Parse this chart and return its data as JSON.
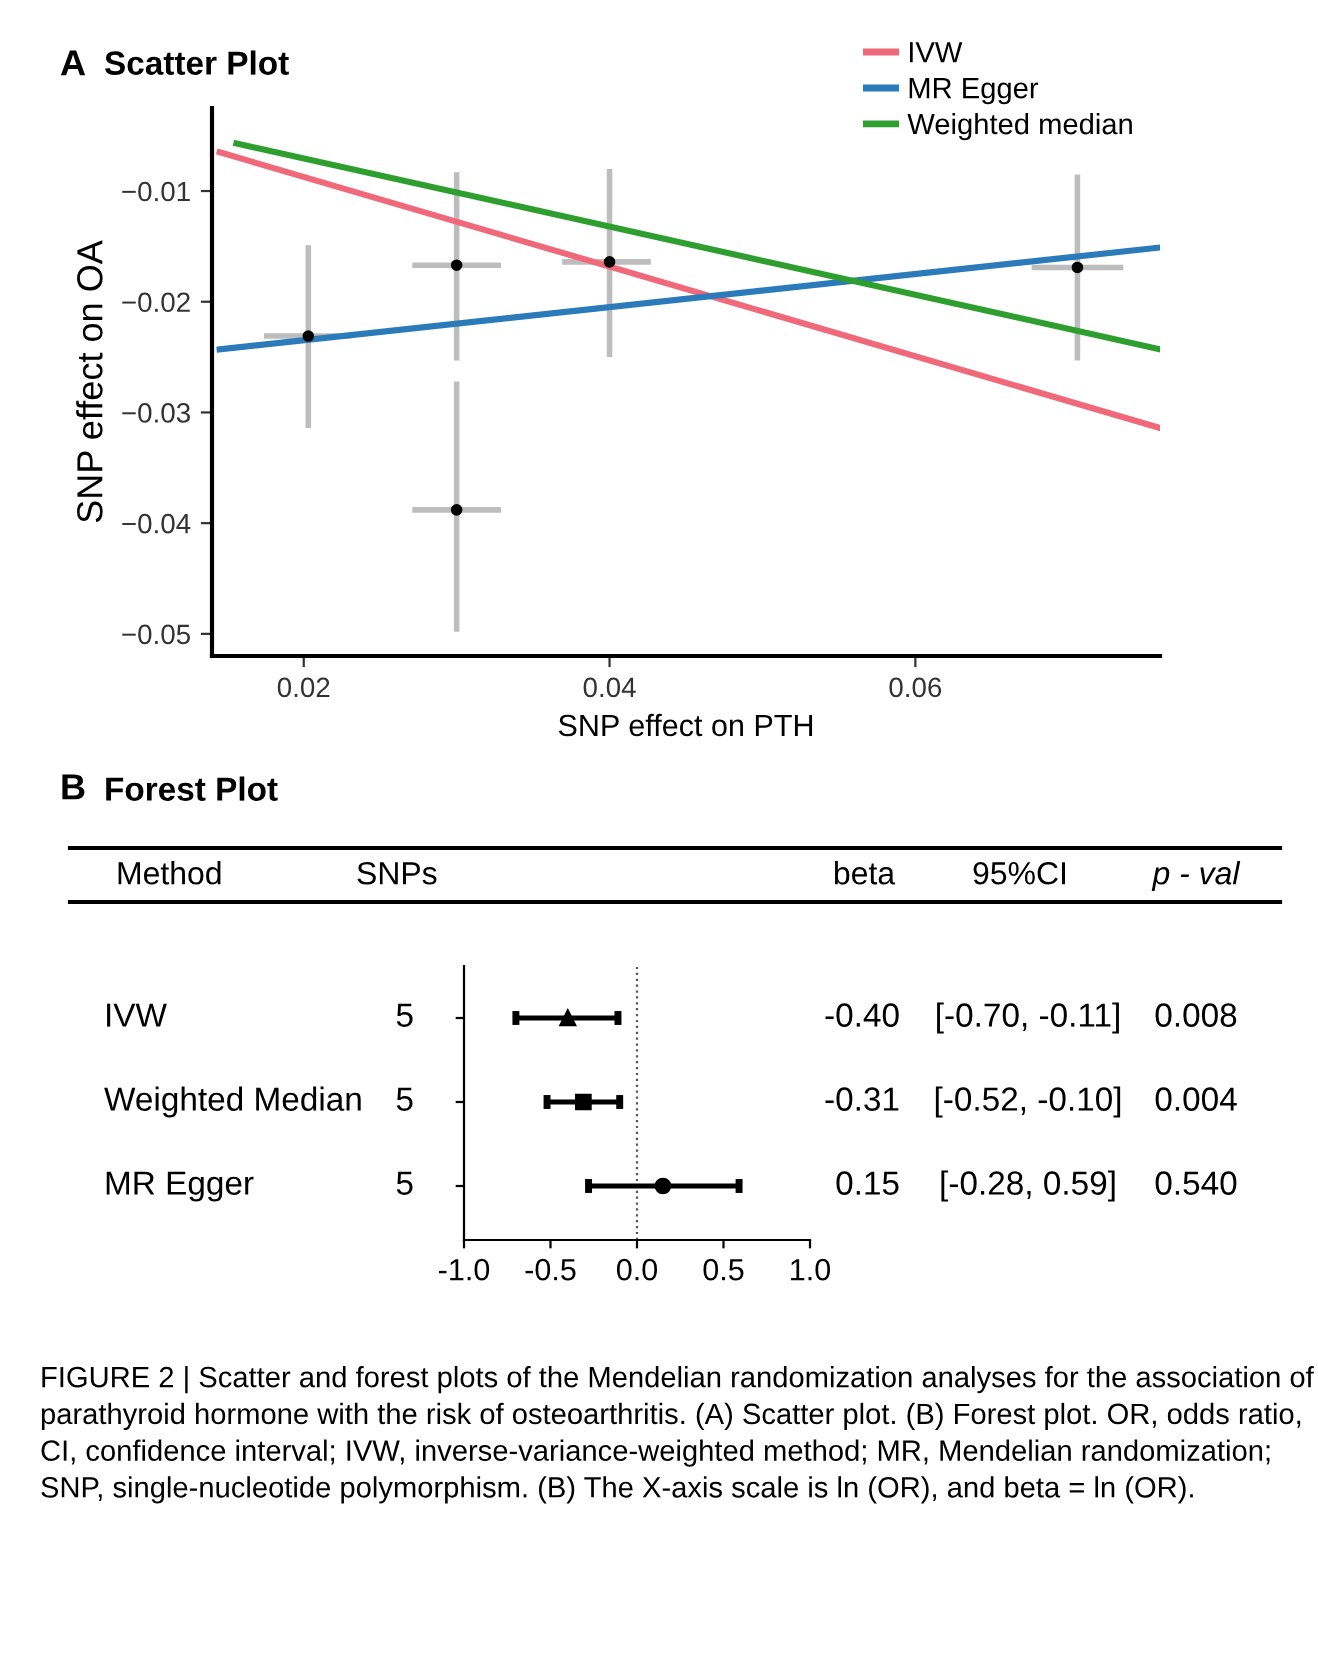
{
  "chart_data": [
    {
      "type": "scatter",
      "title": "Scatter Plot",
      "xlabel": "SNP effect on PTH",
      "ylabel": "SNP effect on OA",
      "annotations": [
        "A"
      ],
      "xlim": [
        0.014,
        0.076
      ],
      "ylim": [
        -0.052,
        -0.0025
      ],
      "xticks": [
        0.02,
        0.04,
        0.06
      ],
      "yticks": [
        {
          "value": -0.01,
          "label": "−0.01"
        },
        {
          "value": -0.02,
          "label": "−0.02"
        },
        {
          "value": -0.03,
          "label": "−0.03"
        },
        {
          "value": -0.04,
          "label": "−0.04"
        },
        {
          "value": -0.05,
          "label": "−0.05"
        }
      ],
      "grid": false,
      "legend": "top right",
      "series": [
        {
          "color": "#000000",
          "marker": "circle",
          "x": [
            0.0203,
            0.03,
            0.03,
            0.04,
            0.0706
          ],
          "values": [
            -0.0231,
            -0.0167,
            -0.0388,
            -0.0164,
            -0.0169
          ],
          "errors": [
            [
              -0.0314,
              -0.0149
            ],
            [
              -0.0253,
              -0.0083
            ],
            [
              -0.0498,
              -0.0272
            ],
            [
              -0.025,
              -0.008
            ],
            [
              -0.0253,
              -0.0085
            ]
          ],
          "xerrors": [
            [
              0.0174,
              0.0231
            ],
            [
              0.0271,
              0.0329
            ],
            [
              0.0271,
              0.0329
            ],
            [
              0.0369,
              0.0427
            ],
            [
              0.0676,
              0.0736
            ]
          ]
        },
        {
          "type": "line",
          "name": "IVW",
          "color": "#f0697a",
          "x": [
            0.0145,
            0.076
          ],
          "values": [
            -0.0065,
            -0.0314
          ]
        },
        {
          "type": "line",
          "name": "MR Egger",
          "color": "#2b7bba",
          "x": [
            0.0145,
            0.076
          ],
          "values": [
            -0.0243,
            -0.0151
          ]
        },
        {
          "type": "line",
          "name": "Weighted median",
          "color": "#2e9e2e",
          "x": [
            0.0156,
            0.076
          ],
          "values": [
            -0.0057,
            -0.0243
          ]
        }
      ]
    },
    {
      "type": "scatter",
      "title": "Forest Plot",
      "orientation": "horizontal",
      "tick_labels": "x",
      "categories": [
        "IVW",
        "Weighted Median",
        "MR Egger"
      ],
      "xlim": [
        -1.0,
        1.0
      ],
      "xticks": [
        {
          "value": -1.0,
          "label": "-1.0"
        },
        {
          "value": -0.5,
          "label": "-0.5"
        },
        {
          "value": 0.0,
          "label": "0.0"
        },
        {
          "value": 0.5,
          "label": "0.5"
        },
        {
          "value": 1.0,
          "label": "1.0"
        }
      ],
      "ref_lines": [
        {
          "axis": "x",
          "value": 0,
          "color": "#555555",
          "line_style": "dotted"
        }
      ],
      "grid": false,
      "annotations": [
        "B",
        "Method",
        "SNPs",
        "beta",
        "95%CI",
        "p - val",
        "5",
        "-0.40",
        "[-0.70, -0.11]",
        "0.008",
        "5",
        "-0.31",
        "[-0.52, -0.10]",
        "0.004",
        "5",
        "0.15",
        "[-0.28, 0.59]",
        "0.540",
        "FIGURE 2 | Scatter and forest plots of the Mendelian randomization analyses for the association of parathyroid hormone with the risk of osteoarthritis. (A) Scatter plot. (B) Forest plot. OR, odds ratio, CI, confidence interval; IVW, inverse-variance-weighted method; MR, Mendelian randomization; SNP, single-nucleotide polymorphism. (B) The X-axis scale is ln (OR), and beta = ln (OR)."
      ],
      "series": [
        {
          "color": "#000000",
          "marker": "triangle",
          "values": [
            -0.4,
            null,
            null
          ],
          "errors": [
            [
              -0.7,
              -0.11
            ],
            null,
            null
          ]
        },
        {
          "color": "#000000",
          "marker": "square",
          "values": [
            null,
            -0.31,
            null
          ],
          "errors": [
            null,
            [
              -0.52,
              -0.1
            ],
            null
          ]
        },
        {
          "color": "#000000",
          "marker": "circle",
          "values": [
            null,
            null,
            0.15
          ],
          "errors": [
            null,
            null,
            [
              -0.28,
              0.59
            ]
          ]
        }
      ]
    }
  ]
}
